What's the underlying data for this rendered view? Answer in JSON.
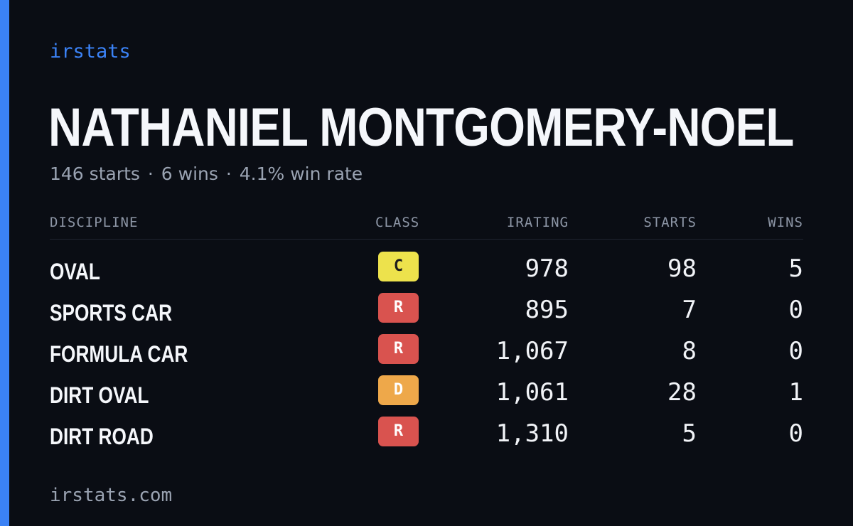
{
  "brand": "irstats",
  "player": {
    "name": "NATHANIEL MONTGOMERY-NOEL",
    "starts_text": "146 starts",
    "wins_text": "6 wins",
    "winrate_text": "4.1% win rate",
    "separator": "·"
  },
  "table": {
    "headers": {
      "discipline": "DISCIPLINE",
      "class": "CLASS",
      "irating": "IRATING",
      "starts": "STARTS",
      "wins": "WINS"
    },
    "rows": [
      {
        "discipline": "OVAL",
        "class": "C",
        "irating": "978",
        "starts": "98",
        "wins": "5"
      },
      {
        "discipline": "SPORTS CAR",
        "class": "R",
        "irating": "895",
        "starts": "7",
        "wins": "0"
      },
      {
        "discipline": "FORMULA CAR",
        "class": "R",
        "irating": "1,067",
        "starts": "8",
        "wins": "0"
      },
      {
        "discipline": "DIRT OVAL",
        "class": "D",
        "irating": "1,061",
        "starts": "28",
        "wins": "1"
      },
      {
        "discipline": "DIRT ROAD",
        "class": "R",
        "irating": "1,310",
        "starts": "5",
        "wins": "0"
      }
    ]
  },
  "class_colors": {
    "C": {
      "bg": "#ede24c",
      "fg": "#1c1c1c"
    },
    "R": {
      "bg": "#d9534f",
      "fg": "#ffffff"
    },
    "D": {
      "bg": "#eea84a",
      "fg": "#ffffff"
    }
  },
  "footer": {
    "domain": "irstats.com"
  },
  "colors": {
    "accent": "#3b82f6",
    "background": "#0a0d14"
  }
}
